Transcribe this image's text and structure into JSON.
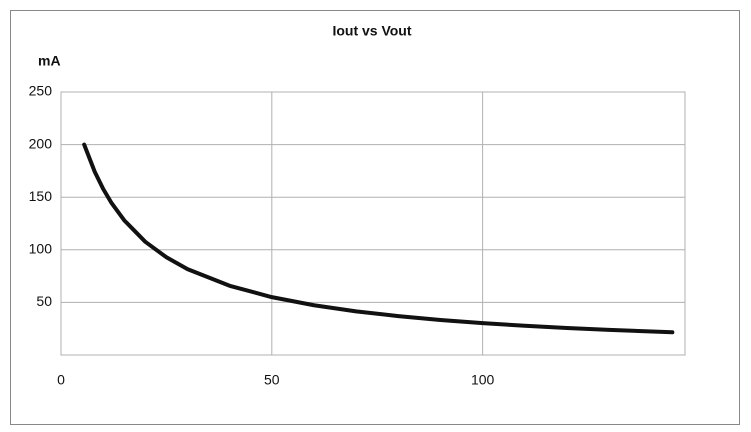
{
  "chart_data": {
    "type": "line",
    "title": "Iout vs Vout",
    "y_label": "mA",
    "x": [
      5.5,
      8,
      10,
      12,
      15,
      20,
      25,
      30,
      40,
      50,
      60,
      70,
      80,
      90,
      100,
      110,
      120,
      130,
      145
    ],
    "series": [
      {
        "name": "Iout",
        "color": "#111111",
        "values": [
          200,
          174.2,
          157.9,
          144.4,
          128.0,
          107.6,
          92.9,
          81.6,
          65.8,
          55.0,
          47.3,
          41.5,
          37.0,
          33.3,
          30.3,
          27.8,
          25.7,
          23.9,
          21.6
        ]
      }
    ],
    "xlim": [
      0,
      148
    ],
    "xticks": [
      0,
      50,
      100
    ],
    "ylim": [
      0,
      250
    ],
    "yticks": [
      50,
      100,
      150,
      200,
      250
    ],
    "grid": true
  }
}
